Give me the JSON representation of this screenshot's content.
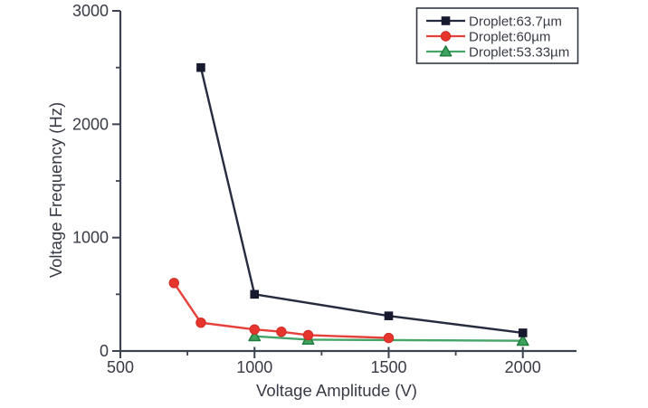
{
  "figure": {
    "background": "#ffffff",
    "axis_color": "#3e4350",
    "text_color": "#383b45",
    "legend_border_color": "#343843"
  },
  "chart_data": {
    "type": "line",
    "title": "",
    "xlabel": "Voltage Amplitude (V)",
    "ylabel": "Voltage Frequency (Hz)",
    "xlim": [
      500,
      2200
    ],
    "ylim": [
      0,
      3000
    ],
    "xticks": [
      500,
      1000,
      1500,
      2000
    ],
    "yticks": [
      0,
      1000,
      2000,
      3000
    ],
    "minor_xticks": [
      750,
      1250,
      1750
    ],
    "minor_yticks": [
      500,
      1500,
      2500
    ],
    "grid": false,
    "legend_position": "top-right",
    "series": [
      {
        "name": "Droplet:63.7µm",
        "marker": "square",
        "color": "#262b40",
        "marker_fill": "#171a2e",
        "marker_stroke": "#171a2e",
        "points": [
          [
            800,
            2500
          ],
          [
            1000,
            500
          ],
          [
            1500,
            310
          ],
          [
            2000,
            160
          ]
        ]
      },
      {
        "name": "Droplet:60µm",
        "marker": "circle",
        "color": "#e5403a",
        "marker_fill": "#e6352d",
        "marker_stroke": "#cf2b24",
        "points": [
          [
            700,
            600
          ],
          [
            800,
            250
          ],
          [
            1000,
            190
          ],
          [
            1100,
            170
          ],
          [
            1200,
            140
          ],
          [
            1500,
            115
          ]
        ]
      },
      {
        "name": "Droplet:53.33µm",
        "marker": "triangle",
        "color": "#44a567",
        "marker_fill": "#3fa35d",
        "marker_stroke": "#1d7a3f",
        "points": [
          [
            1000,
            130
          ],
          [
            1200,
            100
          ],
          [
            2000,
            90
          ]
        ]
      }
    ]
  }
}
